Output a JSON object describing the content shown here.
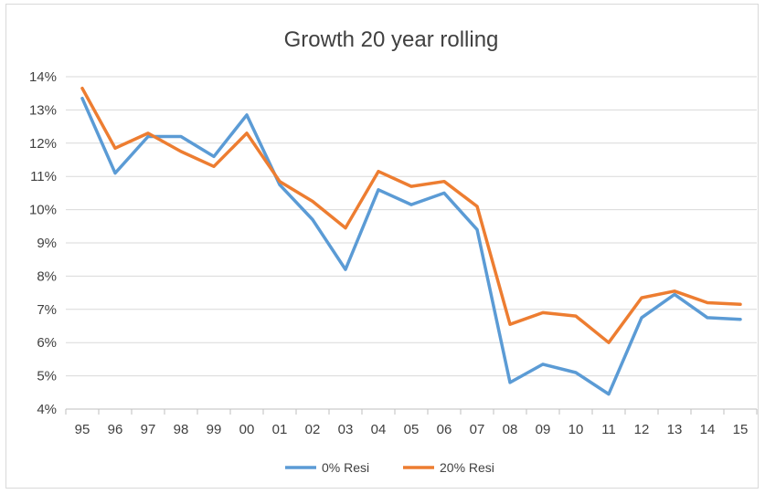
{
  "chart_data": {
    "type": "line",
    "title": "Growth 20 year rolling",
    "xlabel": "",
    "ylabel": "",
    "categories": [
      "95",
      "96",
      "97",
      "98",
      "99",
      "00",
      "01",
      "02",
      "03",
      "04",
      "05",
      "06",
      "07",
      "08",
      "09",
      "10",
      "11",
      "12",
      "13",
      "14",
      "15"
    ],
    "y_ticks": [
      "4%",
      "5%",
      "6%",
      "7%",
      "8%",
      "9%",
      "10%",
      "11%",
      "12%",
      "13%",
      "14%"
    ],
    "ylim": [
      4,
      14
    ],
    "y_unit": "%",
    "grid": true,
    "legend_position": "bottom",
    "series": [
      {
        "name": "0% Resi",
        "color": "#5b9bd5",
        "values": [
          13.35,
          11.1,
          12.2,
          12.2,
          11.6,
          12.85,
          10.75,
          9.7,
          8.2,
          10.6,
          10.15,
          10.5,
          9.4,
          4.8,
          5.35,
          5.1,
          4.45,
          6.75,
          7.45,
          6.75,
          6.7
        ]
      },
      {
        "name": "20% Resi",
        "color": "#ed7d31",
        "values": [
          13.65,
          11.85,
          12.3,
          11.75,
          11.3,
          12.3,
          10.85,
          10.25,
          9.45,
          11.15,
          10.7,
          10.85,
          10.1,
          6.55,
          6.9,
          6.8,
          6.0,
          7.35,
          7.55,
          7.2,
          7.15
        ]
      }
    ]
  }
}
